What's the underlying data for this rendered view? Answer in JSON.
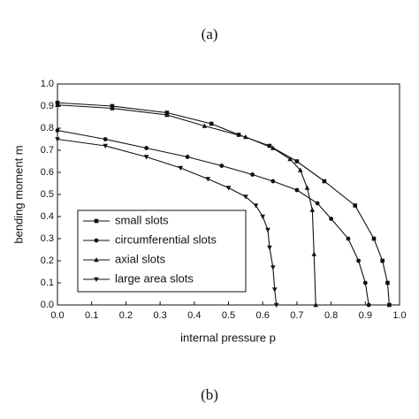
{
  "chart_data": {
    "type": "line",
    "header": "(a)",
    "caption": "(b)",
    "x_label": "internal pressure p",
    "y_label": "bending moment m",
    "xlim": [
      0,
      1
    ],
    "ylim": [
      0,
      1
    ],
    "xticks": [
      {
        "value": 0,
        "label": "0.0"
      },
      0.1,
      0.2,
      0.3,
      0.4,
      0.5,
      0.6,
      0.7,
      0.8,
      0.9,
      {
        "value": 1,
        "label": "1.0"
      }
    ],
    "yticks": [
      {
        "value": 0,
        "label": "0.0"
      },
      0.1,
      0.2,
      0.3,
      0.4,
      0.5,
      0.6,
      0.7,
      0.8,
      0.9,
      {
        "value": 1,
        "label": "1.0"
      }
    ],
    "legend": "lower left",
    "series": [
      {
        "name": "small slots",
        "color": "#111111",
        "marker": "square",
        "x": [
          0,
          0.16,
          0.32,
          0.45,
          0.53,
          0.62,
          0.7,
          0.78,
          0.87,
          0.925,
          0.95,
          0.965,
          0.97
        ],
        "values": [
          0.915,
          0.9,
          0.87,
          0.82,
          0.77,
          0.72,
          0.65,
          0.56,
          0.45,
          0.3,
          0.2,
          0.1,
          0
        ]
      },
      {
        "name": "circumferential slots",
        "color": "#111111",
        "marker": "circle",
        "x": [
          0,
          0.14,
          0.26,
          0.38,
          0.48,
          0.57,
          0.63,
          0.7,
          0.76,
          0.8,
          0.85,
          0.88,
          0.9,
          0.91
        ],
        "values": [
          0.79,
          0.75,
          0.71,
          0.67,
          0.63,
          0.59,
          0.56,
          0.52,
          0.46,
          0.39,
          0.3,
          0.2,
          0.1,
          0
        ]
      },
      {
        "name": "axial slots",
        "color": "#111111",
        "marker": "triangle-up",
        "x": [
          0,
          0.16,
          0.32,
          0.43,
          0.55,
          0.63,
          0.68,
          0.71,
          0.73,
          0.745,
          0.75,
          0.755
        ],
        "values": [
          0.905,
          0.89,
          0.86,
          0.81,
          0.76,
          0.71,
          0.66,
          0.61,
          0.53,
          0.43,
          0.23,
          0
        ]
      },
      {
        "name": "large area slots",
        "color": "#111111",
        "marker": "triangle-down",
        "x": [
          0,
          0.14,
          0.26,
          0.36,
          0.44,
          0.5,
          0.55,
          0.58,
          0.6,
          0.615,
          0.62,
          0.63,
          0.635,
          0.64
        ],
        "values": [
          0.75,
          0.72,
          0.67,
          0.62,
          0.57,
          0.53,
          0.49,
          0.45,
          0.4,
          0.34,
          0.26,
          0.17,
          0.07,
          0
        ]
      }
    ]
  }
}
